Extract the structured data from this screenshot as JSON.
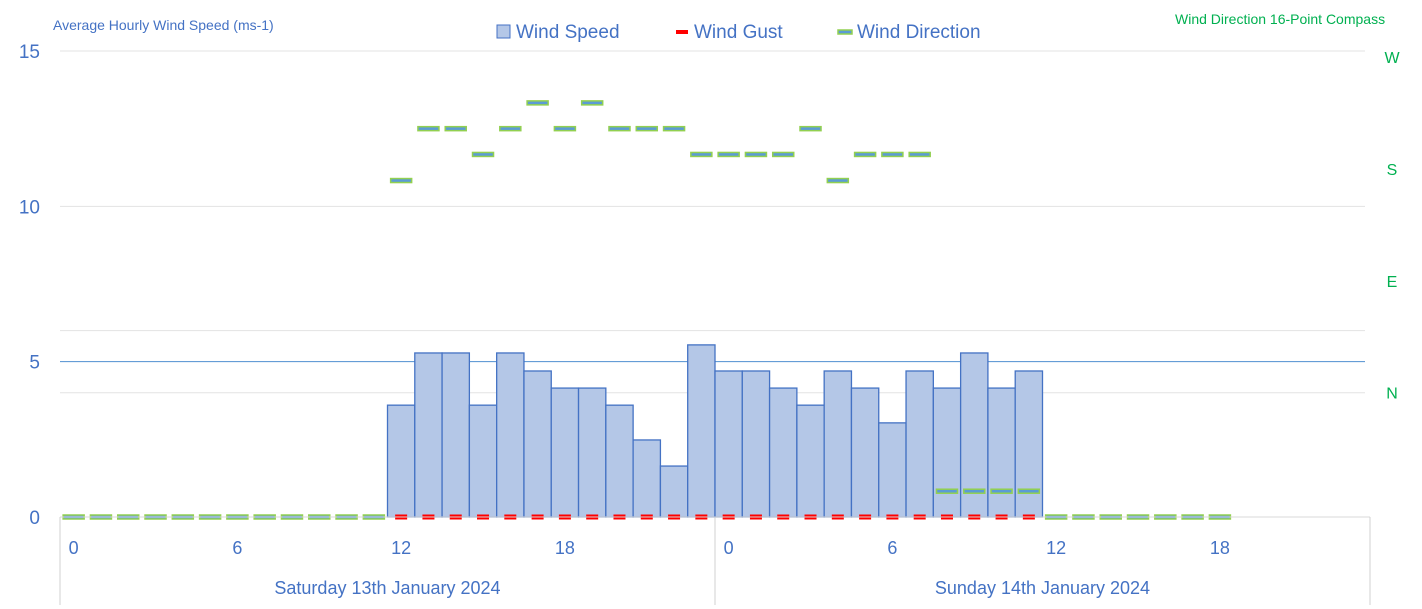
{
  "chart_data": {
    "type": "bar",
    "left_axis_title": "Average Hourly Wind Speed (ms-1)",
    "right_axis_title": "Wind Direction 16-Point Compass",
    "ylim": [
      0,
      15
    ],
    "y_ticks": [
      0,
      5,
      10,
      15
    ],
    "right_axis_labels": [
      {
        "label": "N",
        "value": 4.0
      },
      {
        "label": "E",
        "value": 7.6
      },
      {
        "label": "S",
        "value": 11.2
      },
      {
        "label": "W",
        "value": 14.8
      }
    ],
    "days": [
      {
        "label": "Saturday 13th January 2024",
        "tick_labels": [
          "0",
          "6",
          "12",
          "18"
        ]
      },
      {
        "label": "Sunday 14th January 2024",
        "tick_labels": [
          "0",
          "6",
          "12",
          "18"
        ]
      }
    ],
    "hours_per_day": 24,
    "legend": {
      "position": "top",
      "entries": [
        "Wind Speed",
        "Wind Gust",
        "Wind Direction"
      ]
    },
    "colors": {
      "wind_speed_fill": "#b4c7e7",
      "wind_speed_border": "#4472c4",
      "wind_gust": "#ff0000",
      "wind_direction": "#92d050",
      "wind_direction_inner": "#5b9bd5",
      "axis_text": "#4472c4",
      "right_axis_text": "#00b050"
    },
    "series": [
      {
        "name": "Wind Speed",
        "type": "bar",
        "start_hour": 12,
        "values": [
          3.6,
          5.28,
          5.28,
          3.6,
          5.28,
          4.7,
          4.15,
          4.15,
          3.6,
          2.48,
          1.64,
          5.54,
          4.7,
          4.7,
          4.15,
          3.6,
          4.7,
          4.15,
          3.03,
          4.7,
          4.15,
          5.28,
          4.15,
          4.7
        ]
      },
      {
        "name": "Wind Gust",
        "type": "dash",
        "start_hour": 12,
        "values": [
          0,
          0,
          0,
          0,
          0,
          0,
          0,
          0,
          0,
          0,
          0,
          0,
          0,
          0,
          0,
          0,
          0,
          0,
          0,
          0,
          0,
          0,
          0,
          0
        ]
      },
      {
        "name": "Wind Direction",
        "type": "dash",
        "start_hour": 0,
        "values": [
          0,
          0,
          0,
          0,
          0,
          0,
          0,
          0,
          0,
          0,
          0,
          0,
          10.83,
          12.5,
          12.5,
          11.67,
          12.5,
          13.33,
          12.5,
          13.33,
          12.5,
          12.5,
          12.5,
          11.67,
          11.67,
          11.67,
          11.67,
          12.5,
          10.83,
          11.67,
          11.67,
          11.67,
          0.83,
          0.83,
          0.83,
          0.83,
          0,
          0,
          0,
          0,
          0,
          0,
          0
        ]
      }
    ]
  }
}
